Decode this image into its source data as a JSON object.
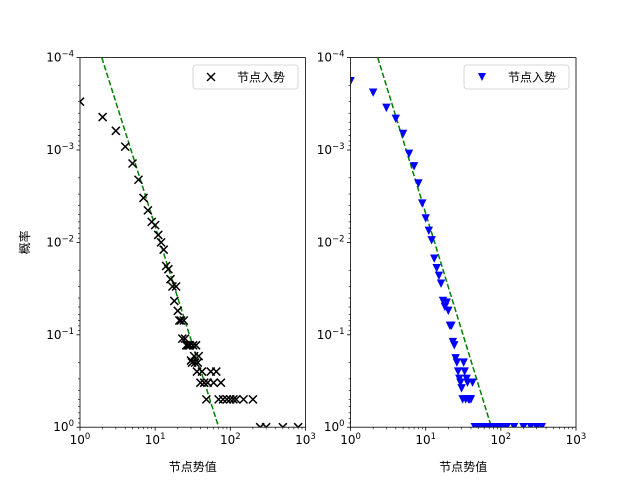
{
  "chart_data": [
    {
      "type": "scatter",
      "title": "",
      "xlabel": "节点势值",
      "ylabel": "概率",
      "xscale": "log",
      "yscale": "log",
      "yaxis_inverted": true,
      "xlim": [
        1,
        1000
      ],
      "ylim": [
        1,
        0.0001
      ],
      "xticks": [
        {
          "base": "10",
          "exp": "0"
        },
        {
          "base": "10",
          "exp": "1"
        },
        {
          "base": "10",
          "exp": "2"
        },
        {
          "base": "10",
          "exp": "3"
        }
      ],
      "yticks": [
        {
          "base": "10",
          "exp": "−4"
        },
        {
          "base": "10",
          "exp": "−3"
        },
        {
          "base": "10",
          "exp": "−2"
        },
        {
          "base": "10",
          "exp": "−1"
        },
        {
          "base": "10",
          "exp": "0"
        }
      ],
      "grid": false,
      "legend_position": "top-right",
      "series": [
        {
          "name": "节点入势",
          "marker": "x",
          "color": "#000000",
          "x": [
            1,
            2,
            3,
            4,
            5,
            6,
            7,
            8,
            9,
            10,
            11,
            12,
            13,
            14,
            15,
            16,
            17,
            18,
            19,
            20,
            21,
            22,
            23,
            24,
            25,
            26,
            27,
            28,
            29,
            30,
            31,
            32,
            33,
            34,
            35,
            36,
            37,
            38,
            40,
            42,
            45,
            48,
            50,
            55,
            60,
            65,
            70,
            75,
            80,
            90,
            100,
            110,
            120,
            150,
            200,
            250,
            300,
            500,
            800
          ],
          "y": [
            0.0003,
            0.00044,
            0.00062,
            0.00092,
            0.0014,
            0.0021,
            0.0033,
            0.0045,
            0.006,
            0.0065,
            0.0083,
            0.01,
            0.012,
            0.018,
            0.0195,
            0.025,
            0.03,
            0.043,
            0.03,
            0.055,
            0.07,
            0.07,
            0.11,
            0.07,
            0.11,
            0.13,
            0.13,
            0.13,
            0.13,
            0.19,
            0.2,
            0.13,
            0.17,
            0.2,
            0.13,
            0.25,
            0.2,
            0.17,
            0.33,
            0.25,
            0.33,
            0.5,
            0.33,
            0.25,
            0.33,
            0.25,
            0.5,
            0.33,
            0.5,
            0.5,
            0.5,
            0.5,
            0.5,
            0.5,
            0.5,
            1.0,
            1.0,
            1.0,
            1.0
          ]
        }
      ],
      "fit_line": {
        "style": "dashed",
        "color": "#008000",
        "x": [
          1.95,
          70
        ],
        "y": [
          0.0001,
          1.0
        ]
      }
    },
    {
      "type": "scatter",
      "title": "",
      "xlabel": "节点势值",
      "ylabel": "",
      "xscale": "log",
      "yscale": "log",
      "yaxis_inverted": true,
      "xlim": [
        1,
        1000
      ],
      "ylim": [
        1,
        0.0001
      ],
      "xticks": [
        {
          "base": "10",
          "exp": "0"
        },
        {
          "base": "10",
          "exp": "1"
        },
        {
          "base": "10",
          "exp": "2"
        },
        {
          "base": "10",
          "exp": "3"
        }
      ],
      "yticks": [
        {
          "base": "10",
          "exp": "−4"
        },
        {
          "base": "10",
          "exp": "−3"
        },
        {
          "base": "10",
          "exp": "−2"
        },
        {
          "base": "10",
          "exp": "−1"
        },
        {
          "base": "10",
          "exp": "0"
        }
      ],
      "grid": false,
      "legend_position": "top-right",
      "series": [
        {
          "name": "节点入势",
          "marker": "triangle-down",
          "color": "#0000ff",
          "x": [
            1,
            2,
            3,
            4,
            5,
            6,
            7,
            8,
            9,
            10,
            11,
            12,
            13,
            14,
            15,
            16,
            17,
            18,
            19,
            20,
            21,
            22,
            23,
            24,
            25,
            26,
            27,
            28,
            29,
            30,
            31,
            32,
            33,
            34,
            35,
            36,
            37,
            38,
            40,
            42,
            45,
            48,
            50,
            55,
            60,
            65,
            70,
            75,
            80,
            90,
            100,
            110,
            120,
            150,
            200,
            250,
            300,
            350
          ],
          "y": [
            0.00018,
            0.00024,
            0.00035,
            0.00046,
            0.00067,
            0.0011,
            0.0015,
            0.0023,
            0.0038,
            0.0055,
            0.0075,
            0.0095,
            0.015,
            0.019,
            0.023,
            0.028,
            0.043,
            0.05,
            0.045,
            0.055,
            0.08,
            0.08,
            0.12,
            0.13,
            0.18,
            0.2,
            0.25,
            0.3,
            0.33,
            0.38,
            0.5,
            0.2,
            0.25,
            0.5,
            0.3,
            0.33,
            0.5,
            0.5,
            0.5,
            0.33,
            1.0,
            1.0,
            1.0,
            1.0,
            1.0,
            1.0,
            1.0,
            1.0,
            1.0,
            1.0,
            1.0,
            1.0,
            1.0,
            1.0,
            1.0,
            1.0,
            1.0,
            1.0
          ]
        }
      ],
      "fit_line": {
        "style": "dashed",
        "color": "#008000",
        "x": [
          2.3,
          75
        ],
        "y": [
          0.0001,
          1.0
        ]
      }
    }
  ]
}
